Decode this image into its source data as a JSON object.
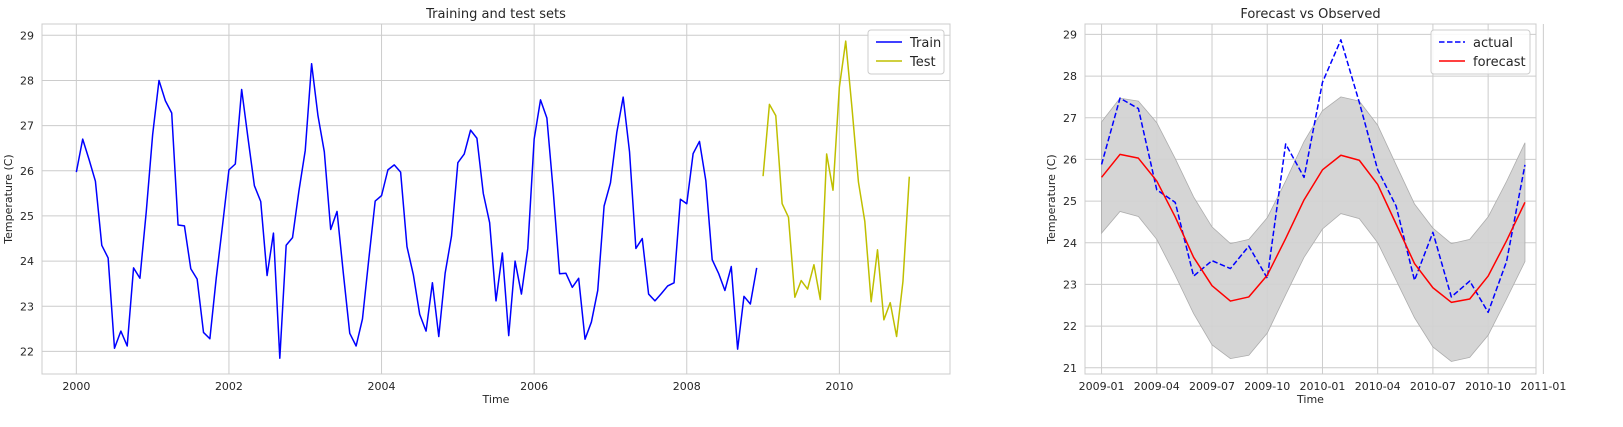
{
  "colors": {
    "train": "#0000ff",
    "test": "#bfbf00",
    "actual": "#0000ff",
    "forecast": "#ff0000",
    "band": "#d3d3d3",
    "grid": "#cccccc",
    "spine": "#cccccc",
    "background": "#ffffff"
  },
  "chart_data": [
    {
      "type": "line",
      "title": "Training and test sets",
      "xlabel": "Time",
      "ylabel": "Temperature (C)",
      "xlim": [
        1999.55,
        2011.45
      ],
      "ylim": [
        21.5,
        29.25
      ],
      "xticks": [
        2000,
        2002,
        2004,
        2006,
        2008,
        2010
      ],
      "xtick_labels": [
        "2000",
        "2002",
        "2004",
        "2006",
        "2008",
        "2010"
      ],
      "yticks": [
        22,
        23,
        24,
        25,
        26,
        27,
        28,
        29
      ],
      "ytick_labels": [
        "22",
        "23",
        "24",
        "25",
        "26",
        "27",
        "28",
        "29"
      ],
      "grid": true,
      "legend": "top-right",
      "x_unit": "decimal year (monthly points from 2000-01)",
      "series": [
        {
          "name": "Train",
          "color_key": "train",
          "x_start": 2000,
          "x_step": 0.0833333,
          "values": [
            25.97,
            26.7,
            26.25,
            25.77,
            24.35,
            24.07,
            22.07,
            22.45,
            22.12,
            23.85,
            23.62,
            25.1,
            26.8,
            28.0,
            27.55,
            27.28,
            24.8,
            24.78,
            23.83,
            23.6,
            22.42,
            22.28,
            23.62,
            24.8,
            26.02,
            26.15,
            27.8,
            26.72,
            25.67,
            25.32,
            23.68,
            24.62,
            21.85,
            24.35,
            24.52,
            25.55,
            26.45,
            28.37,
            27.22,
            26.42,
            24.7,
            25.1,
            23.72,
            22.4,
            22.12,
            22.72,
            24.05,
            25.33,
            25.45,
            26.02,
            26.13,
            25.97,
            24.32,
            23.7,
            22.82,
            22.45,
            23.52,
            22.33,
            23.73,
            24.55,
            26.18,
            26.37,
            26.9,
            26.72,
            25.5,
            24.85,
            23.12,
            24.18,
            22.35,
            24.0,
            23.27,
            24.28,
            26.7,
            27.57,
            27.17,
            25.55,
            23.72,
            23.73,
            23.42,
            23.62,
            22.27,
            22.65,
            23.35,
            25.22,
            25.73,
            26.85,
            27.63,
            26.42,
            24.28,
            24.5,
            23.27,
            23.12,
            23.28,
            23.45,
            23.52,
            25.37,
            25.27,
            26.38,
            26.65,
            25.78,
            24.03,
            23.73,
            23.35,
            23.88,
            22.05,
            23.22,
            23.05,
            23.85
          ]
        },
        {
          "name": "Test",
          "color_key": "test",
          "x_start": 2009,
          "x_step": 0.0833333,
          "values": [
            25.88,
            27.47,
            27.22,
            25.27,
            24.97,
            23.2,
            23.57,
            23.38,
            23.92,
            23.15,
            26.37,
            25.57,
            27.85,
            28.87,
            27.37,
            25.75,
            24.88,
            23.1,
            24.25,
            22.7,
            23.08,
            22.33,
            23.55,
            25.87
          ]
        }
      ]
    },
    {
      "type": "line",
      "title": "Forecast vs Observed",
      "xlabel": "Time",
      "ylabel": "Temperature (C)",
      "xlim": [
        -0.9,
        23.6
      ],
      "ylim": [
        20.85,
        29.25
      ],
      "xticks": [
        0,
        3,
        6,
        9,
        12,
        15,
        18,
        21,
        24
      ],
      "xtick_labels": [
        "2009-01",
        "2009-04",
        "2009-07",
        "2009-10",
        "2010-01",
        "2010-04",
        "2010-07",
        "2010-10",
        "2011-01"
      ],
      "yticks": [
        21,
        22,
        23,
        24,
        25,
        26,
        27,
        28,
        29
      ],
      "ytick_labels": [
        "21",
        "22",
        "23",
        "24",
        "25",
        "26",
        "27",
        "28",
        "29"
      ],
      "grid": true,
      "legend": "top-right",
      "x_unit": "months since 2009-01",
      "series": [
        {
          "name": "actual",
          "color_key": "actual",
          "dashed": true,
          "values": [
            25.88,
            27.47,
            27.22,
            25.27,
            24.97,
            23.2,
            23.57,
            23.38,
            23.92,
            23.15,
            26.37,
            25.57,
            27.85,
            28.87,
            27.37,
            25.75,
            24.88,
            23.1,
            24.25,
            22.7,
            23.08,
            22.33,
            23.55,
            25.87
          ]
        },
        {
          "name": "forecast",
          "color_key": "forecast",
          "dashed": false,
          "values": [
            25.57,
            26.12,
            26.03,
            25.48,
            24.62,
            23.65,
            22.97,
            22.6,
            22.7,
            23.22,
            24.1,
            25.03,
            25.75,
            26.1,
            25.98,
            25.4,
            24.45,
            23.5,
            22.92,
            22.57,
            22.65,
            23.2,
            24.05,
            24.97
          ]
        }
      ],
      "band": {
        "color_key": "band",
        "lower": [
          24.23,
          24.75,
          24.63,
          24.08,
          23.22,
          22.3,
          21.55,
          21.22,
          21.3,
          21.83,
          22.75,
          23.65,
          24.33,
          24.7,
          24.58,
          24.0,
          23.1,
          22.2,
          21.5,
          21.15,
          21.25,
          21.78,
          22.65,
          23.55
        ],
        "upper": [
          26.9,
          27.47,
          27.4,
          26.88,
          26.02,
          25.1,
          24.38,
          23.98,
          24.08,
          24.6,
          25.48,
          26.43,
          27.17,
          27.5,
          27.4,
          26.82,
          25.87,
          24.93,
          24.35,
          23.98,
          24.08,
          24.62,
          25.47,
          26.4
        ]
      }
    }
  ]
}
